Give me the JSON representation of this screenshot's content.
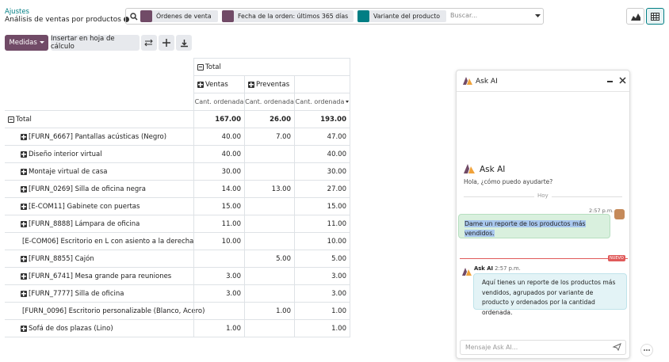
{
  "header": {
    "breadcrumb": "Ajustes",
    "title": "Análisis de ventas por productos",
    "facets": [
      "Órdenes de venta",
      "Fecha de la orden: últimos 365 días",
      "Variante del producto"
    ],
    "search_placeholder": "Buscar..."
  },
  "toolbar": {
    "measures": "Medidas",
    "insert": "Insertar en hoja de cálculo"
  },
  "pivot": {
    "col_total": "Total",
    "col_groups": [
      "Ventas",
      "Preventas"
    ],
    "measures": [
      "Cant. ordenada",
      "Cant. ordenada",
      "Cant. ordenada"
    ],
    "total_row": {
      "label": "Total",
      "values": [
        "167.00",
        "26.00",
        "193.00"
      ]
    },
    "rows": [
      {
        "label": "[FURN_6667] Pantallas acústicas (Negro)",
        "values": [
          "40.00",
          "7.00",
          "47.00"
        ]
      },
      {
        "label": "Diseño interior virtual",
        "values": [
          "40.00",
          null,
          "40.00"
        ]
      },
      {
        "label": "Montaje virtual de casa",
        "values": [
          "30.00",
          null,
          "30.00"
        ]
      },
      {
        "label": "[FURN_0269] Silla de oficina negra",
        "values": [
          "14.00",
          "13.00",
          "27.00"
        ]
      },
      {
        "label": "[E-COM11] Gabinete con puertas",
        "values": [
          "15.00",
          null,
          "15.00"
        ]
      },
      {
        "label": "[FURN_8888] Lámpara de oficina",
        "values": [
          "11.00",
          null,
          "11.00"
        ]
      },
      {
        "label": "[E-COM06] Escritorio en L con asiento a la derecha",
        "values": [
          "10.00",
          null,
          "10.00"
        ]
      },
      {
        "label": "[FURN_8855] Cajón",
        "values": [
          null,
          "5.00",
          "5.00"
        ]
      },
      {
        "label": "[FURN_6741] Mesa grande para reuniones",
        "values": [
          "3.00",
          null,
          "3.00"
        ]
      },
      {
        "label": "[FURN_7777] Silla de oficina",
        "values": [
          "3.00",
          null,
          "3.00"
        ]
      },
      {
        "label": "[FURN_0096] Escritorio personalizable (Blanco, Acero)",
        "values": [
          null,
          "1.00",
          "1.00"
        ]
      },
      {
        "label": "Sofá de dos plazas (Lino)",
        "values": [
          "1.00",
          null,
          "1.00"
        ]
      }
    ]
  },
  "chat": {
    "title": "Ask AI",
    "heading": "Ask AI",
    "greeting": "Hola, ¿cómo puedo ayudarte?",
    "divider": "Hoy",
    "user_time": "2:57 p.m.",
    "user_message": "Dame un reporte de los productos más vendidos.",
    "new_badge": "NUEVO",
    "ai_name": "Ask AI",
    "ai_time": "2:57 p.m.",
    "ai_message": "Aquí tienes un reporte de los productos más vendidos, agrupados por variante de producto y ordenados por la cantidad ordenada.",
    "input_placeholder": "Mensaje Ask AI..."
  }
}
